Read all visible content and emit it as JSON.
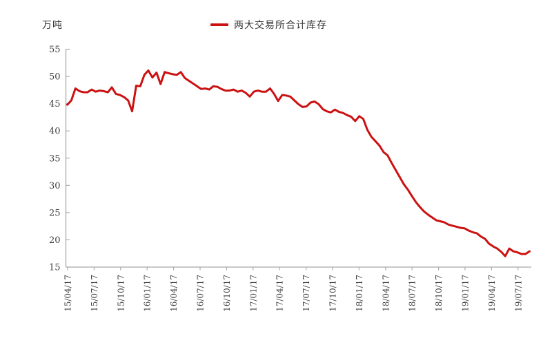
{
  "chart": {
    "unit": "万吨",
    "legend": "两大交易所合计库存",
    "colors": {
      "line": "#cc1111",
      "axis": "#a6a6a6",
      "text": "#3f3f3f"
    }
  },
  "chart_data": {
    "type": "line",
    "title": "",
    "ylabel": "万吨",
    "ylim": [
      15,
      55
    ],
    "y_ticks": [
      55,
      50,
      45,
      40,
      35,
      30,
      25,
      20,
      15
    ],
    "x_tick_labels": [
      "15/04/17",
      "15/07/17",
      "15/10/17",
      "16/01/17",
      "16/04/17",
      "16/07/17",
      "16/10/17",
      "17/01/17",
      "17/04/17",
      "17/07/17",
      "17/10/17",
      "18/01/17",
      "18/04/17",
      "18/07/17",
      "18/10/17",
      "19/01/17",
      "19/04/17",
      "19/07/17"
    ],
    "x_description": "biweekly observations from 2015-04-17 to 2019-08-30",
    "grid": false,
    "legend_position": "top-center",
    "series": [
      {
        "name": "两大交易所合计库存",
        "color": "#cc1111",
        "values": [
          44.8,
          45.6,
          47.8,
          47.3,
          47.1,
          47.1,
          47.6,
          47.2,
          47.4,
          47.3,
          47.1,
          48.0,
          46.8,
          46.6,
          46.2,
          45.6,
          43.6,
          48.3,
          48.2,
          50.3,
          51.1,
          49.8,
          50.7,
          48.6,
          50.8,
          50.6,
          50.4,
          50.3,
          50.8,
          49.7,
          49.2,
          48.7,
          48.2,
          47.7,
          47.8,
          47.6,
          48.2,
          48.1,
          47.7,
          47.4,
          47.4,
          47.6,
          47.2,
          47.4,
          47.0,
          46.3,
          47.2,
          47.4,
          47.2,
          47.2,
          47.8,
          46.8,
          45.5,
          46.6,
          46.5,
          46.3,
          45.6,
          44.9,
          44.4,
          44.5,
          45.2,
          45.4,
          44.9,
          44.0,
          43.6,
          43.4,
          43.9,
          43.5,
          43.3,
          42.9,
          42.6,
          41.8,
          42.7,
          42.2,
          40.2,
          38.9,
          38.1,
          37.3,
          36.1,
          35.5,
          34.1,
          32.8,
          31.5,
          30.2,
          29.2,
          28.0,
          26.9,
          26.0,
          25.2,
          24.6,
          24.1,
          23.6,
          23.4,
          23.2,
          22.8,
          22.6,
          22.4,
          22.2,
          22.1,
          21.7,
          21.4,
          21.2,
          20.6,
          20.2,
          19.3,
          18.8,
          18.4,
          17.8,
          17.0,
          18.4,
          17.9,
          17.7,
          17.4,
          17.4,
          17.9
        ]
      }
    ]
  }
}
